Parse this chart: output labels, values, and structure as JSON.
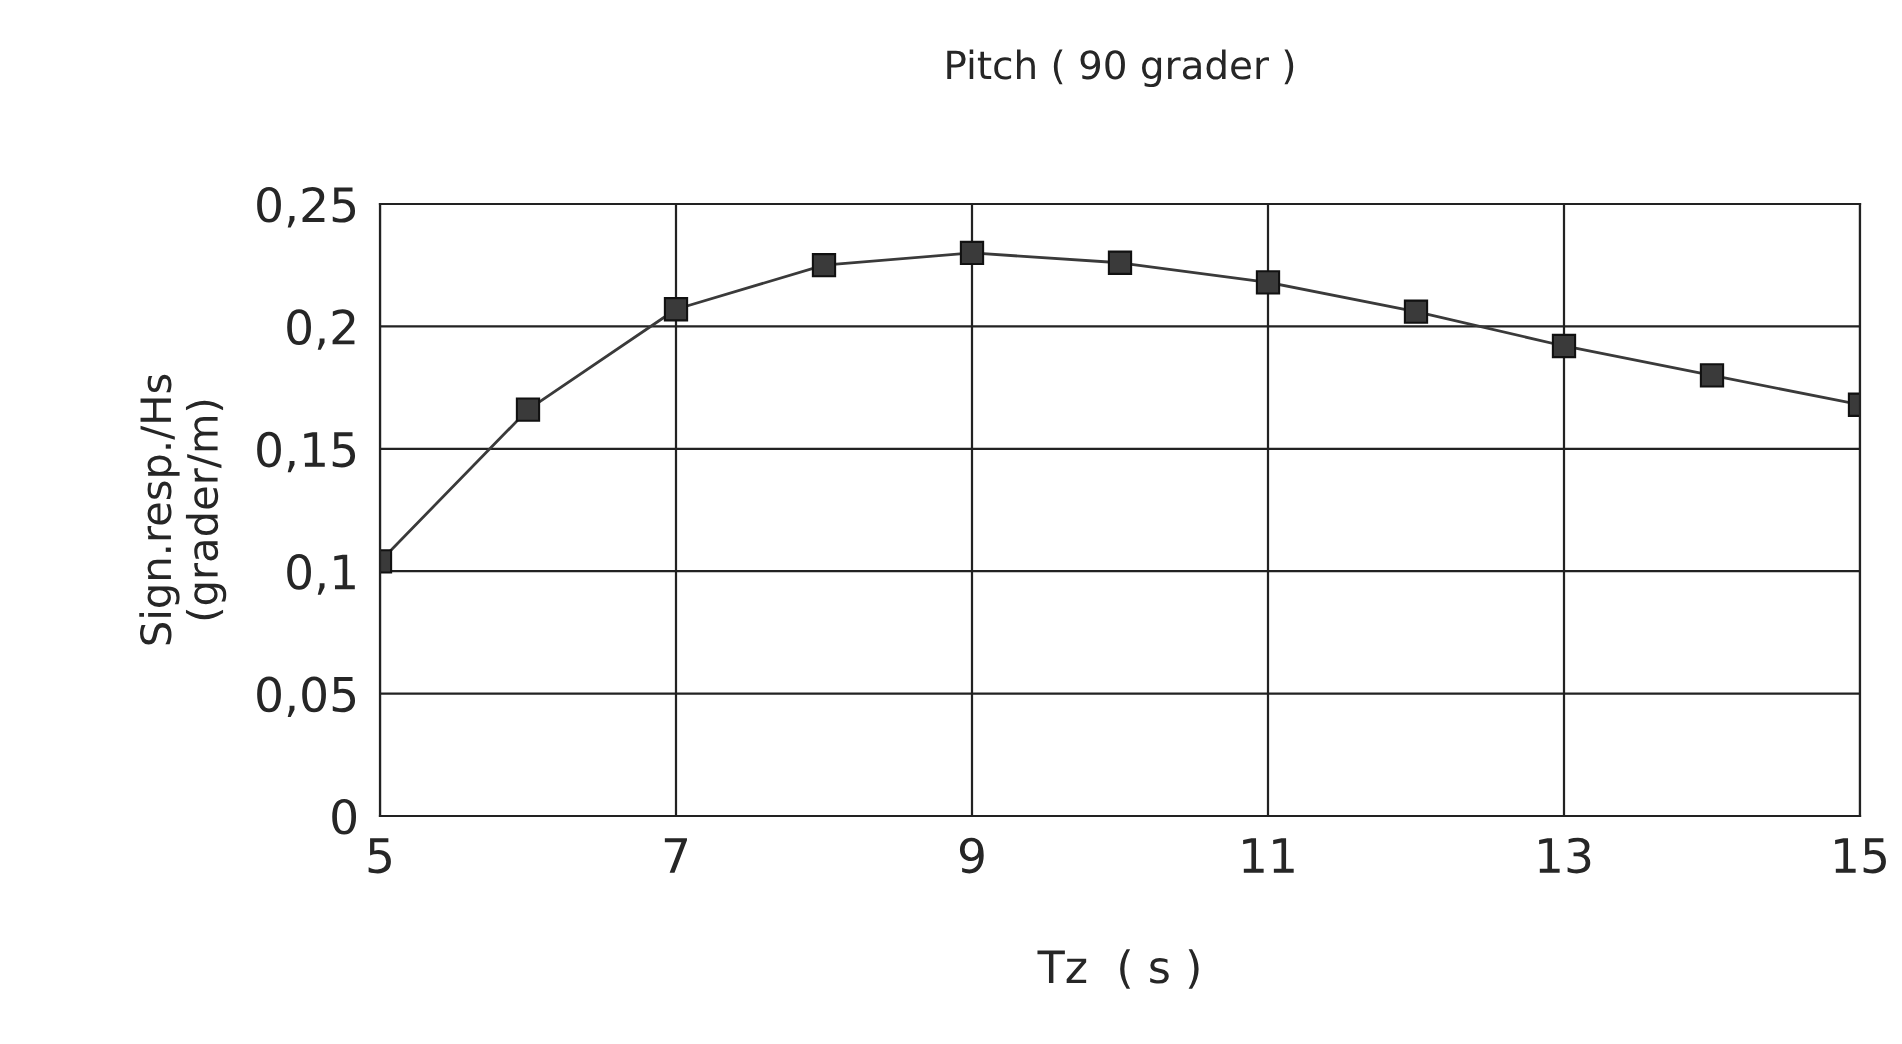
{
  "chart_data": {
    "type": "line",
    "title": "Pitch ( 90 grader )",
    "xlabel": "Tz  ( s )",
    "ylabel": "Sign.resp./Hs\n(grader/m)",
    "x": [
      5,
      6,
      7,
      8,
      9,
      10,
      11,
      12,
      13,
      14,
      15
    ],
    "series": [
      {
        "color": "#3a3a3a",
        "values": [
          0.104,
          0.166,
          0.207,
          0.225,
          0.23,
          0.226,
          0.218,
          0.206,
          0.192,
          0.18,
          0.168
        ]
      }
    ],
    "xlim": [
      5,
      15
    ],
    "xticks": [
      5,
      7,
      9,
      11,
      13,
      15
    ],
    "ylim": [
      0,
      0.25
    ],
    "yticks": [
      {
        "value": 0,
        "label": "0"
      },
      {
        "value": 0.05,
        "label": "0,05"
      },
      {
        "value": 0.1,
        "label": "0,1"
      },
      {
        "value": 0.15,
        "label": "0,15"
      },
      {
        "value": 0.2,
        "label": "0,2"
      },
      {
        "value": 0.25,
        "label": "0,25"
      }
    ],
    "grid": true,
    "marker": "square",
    "line_style": "solid"
  }
}
